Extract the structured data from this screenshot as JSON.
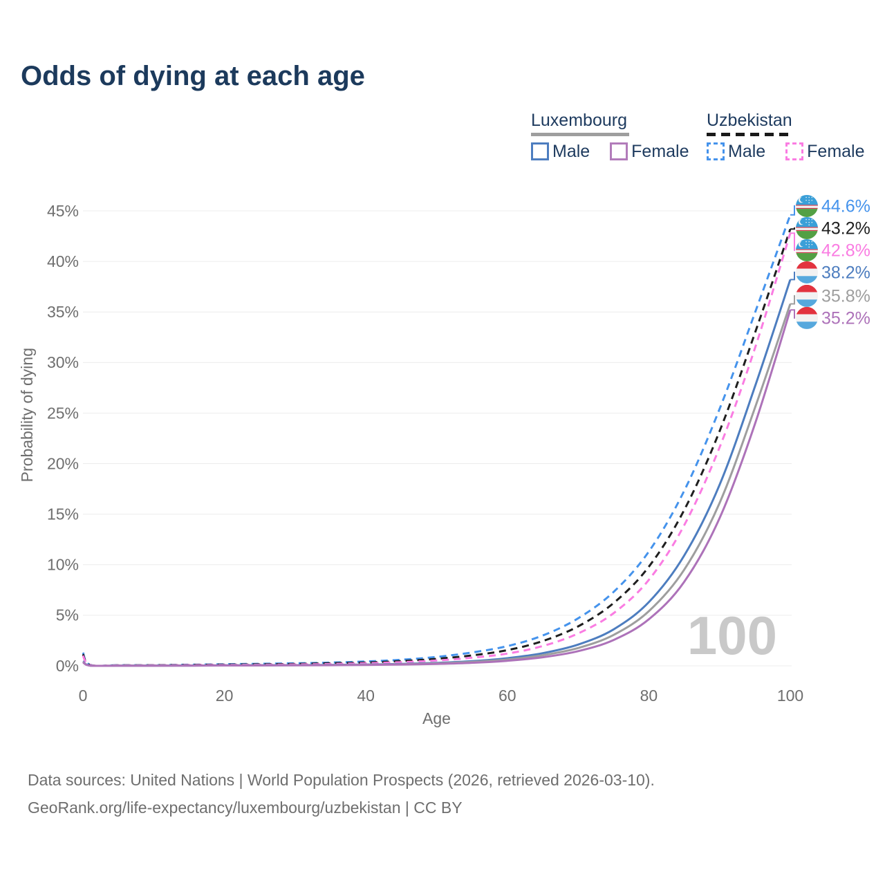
{
  "title": "Odds of dying at each age",
  "watermark": "100",
  "legend": {
    "groups": [
      {
        "id": "luxembourg",
        "label": "Luxembourg",
        "line_style": "solid",
        "line_color": "#9e9e9e",
        "items": [
          {
            "label": "Male",
            "color": "#4d7dbf",
            "dash": false
          },
          {
            "label": "Female",
            "color": "#b27cba",
            "dash": false
          }
        ]
      },
      {
        "id": "uzbekistan",
        "label": "Uzbekistan",
        "line_style": "dashed",
        "line_color": "#1a1a1a",
        "items": [
          {
            "label": "Male",
            "color": "#4593ec",
            "dash": true
          },
          {
            "label": "Female",
            "color": "#fa7ce2",
            "dash": true
          }
        ]
      }
    ]
  },
  "y_axis": {
    "label": "Probability of dying",
    "tick_values": [
      0,
      5,
      10,
      15,
      20,
      25,
      30,
      35,
      40,
      45
    ],
    "tick_labels": [
      "0%",
      "5%",
      "10%",
      "15%",
      "20%",
      "25%",
      "30%",
      "35%",
      "40%",
      "45%"
    ]
  },
  "x_axis": {
    "label": "Age",
    "tick_values": [
      0,
      20,
      40,
      60,
      80,
      100
    ]
  },
  "flags": {
    "uzbekistan": {
      "blue": "#3a9fd8",
      "white": "#f2f2f2",
      "green": "#53a044",
      "red": "#cc3648"
    },
    "luxembourg": {
      "red": "#e2333f",
      "white": "#f2f2f2",
      "blue": "#56a8dd"
    }
  },
  "footer": {
    "line1": "Data sources: United Nations | World Population Prospects (2026, retrieved 2026-03-10).",
    "line2": "GeoRank.org/life-expectancy/luxembourg/uzbekistan | CC BY"
  },
  "chart_data": {
    "type": "line",
    "title": "Odds of dying at each age",
    "xlabel": "Age",
    "ylabel": "Probability of dying",
    "unit": "%",
    "xlim": [
      0,
      100
    ],
    "ylim": [
      0,
      45
    ],
    "grid": "horizontal",
    "series": [
      {
        "id": "uzbekistan-male",
        "country": "Uzbekistan",
        "sex": "Male",
        "color": "#4593ec",
        "dashed": true,
        "flag": "uzbekistan",
        "end_label": "44.6%",
        "end_value": 44.6,
        "points": [
          [
            0,
            1.3
          ],
          [
            1,
            0.1
          ],
          [
            5,
            0.06
          ],
          [
            10,
            0.07
          ],
          [
            15,
            0.11
          ],
          [
            20,
            0.16
          ],
          [
            25,
            0.2
          ],
          [
            30,
            0.25
          ],
          [
            35,
            0.32
          ],
          [
            40,
            0.43
          ],
          [
            45,
            0.6
          ],
          [
            50,
            0.88
          ],
          [
            55,
            1.32
          ],
          [
            60,
            1.95
          ],
          [
            65,
            3.0
          ],
          [
            70,
            4.7
          ],
          [
            75,
            7.3
          ],
          [
            80,
            11.3
          ],
          [
            85,
            17.3
          ],
          [
            90,
            25.4
          ],
          [
            95,
            34.9
          ],
          [
            100,
            44.6
          ]
        ]
      },
      {
        "id": "uzbekistan-both",
        "country": "Uzbekistan",
        "sex": "Both sexes",
        "color": "#1f1f1f",
        "dashed": true,
        "flag": "uzbekistan",
        "end_label": "43.2%",
        "end_value": 43.2,
        "points": [
          [
            0,
            1.15
          ],
          [
            1,
            0.09
          ],
          [
            5,
            0.05
          ],
          [
            10,
            0.06
          ],
          [
            15,
            0.09
          ],
          [
            20,
            0.12
          ],
          [
            25,
            0.15
          ],
          [
            30,
            0.19
          ],
          [
            35,
            0.25
          ],
          [
            40,
            0.33
          ],
          [
            45,
            0.47
          ],
          [
            50,
            0.69
          ],
          [
            55,
            1.03
          ],
          [
            60,
            1.55
          ],
          [
            65,
            2.45
          ],
          [
            70,
            3.9
          ],
          [
            75,
            6.2
          ],
          [
            80,
            9.8
          ],
          [
            85,
            15.4
          ],
          [
            90,
            23.2
          ],
          [
            95,
            32.9
          ],
          [
            100,
            43.2
          ]
        ]
      },
      {
        "id": "uzbekistan-female",
        "country": "Uzbekistan",
        "sex": "Female",
        "color": "#fa7ce2",
        "dashed": true,
        "flag": "uzbekistan",
        "end_label": "42.8%",
        "end_value": 42.8,
        "points": [
          [
            0,
            1.0
          ],
          [
            1,
            0.08
          ],
          [
            5,
            0.04
          ],
          [
            10,
            0.05
          ],
          [
            15,
            0.07
          ],
          [
            20,
            0.09
          ],
          [
            25,
            0.11
          ],
          [
            30,
            0.14
          ],
          [
            35,
            0.18
          ],
          [
            40,
            0.25
          ],
          [
            45,
            0.36
          ],
          [
            50,
            0.53
          ],
          [
            55,
            0.8
          ],
          [
            60,
            1.21
          ],
          [
            65,
            1.96
          ],
          [
            70,
            3.2
          ],
          [
            75,
            5.2
          ],
          [
            80,
            8.5
          ],
          [
            85,
            13.9
          ],
          [
            90,
            21.6
          ],
          [
            95,
            31.4
          ],
          [
            100,
            42.8
          ]
        ]
      },
      {
        "id": "luxembourg-male",
        "country": "Luxembourg",
        "sex": "Male",
        "color": "#4d7dbf",
        "dashed": false,
        "flag": "luxembourg",
        "end_label": "38.2%",
        "end_value": 38.2,
        "points": [
          [
            0,
            0.45
          ],
          [
            1,
            0.03
          ],
          [
            5,
            0.015
          ],
          [
            10,
            0.015
          ],
          [
            15,
            0.03
          ],
          [
            20,
            0.05
          ],
          [
            25,
            0.06
          ],
          [
            30,
            0.07
          ],
          [
            35,
            0.09
          ],
          [
            40,
            0.13
          ],
          [
            45,
            0.19
          ],
          [
            50,
            0.29
          ],
          [
            55,
            0.46
          ],
          [
            60,
            0.75
          ],
          [
            65,
            1.25
          ],
          [
            70,
            2.1
          ],
          [
            75,
            3.6
          ],
          [
            80,
            6.3
          ],
          [
            85,
            10.9
          ],
          [
            90,
            17.9
          ],
          [
            95,
            27.6
          ],
          [
            100,
            38.2
          ]
        ]
      },
      {
        "id": "luxembourg-both",
        "country": "Luxembourg",
        "sex": "Both sexes",
        "color": "#9e9e9e",
        "dashed": false,
        "flag": "luxembourg",
        "end_label": "35.8%",
        "end_value": 35.8,
        "points": [
          [
            0,
            0.4
          ],
          [
            1,
            0.027
          ],
          [
            5,
            0.013
          ],
          [
            10,
            0.013
          ],
          [
            15,
            0.026
          ],
          [
            20,
            0.042
          ],
          [
            25,
            0.052
          ],
          [
            30,
            0.062
          ],
          [
            35,
            0.078
          ],
          [
            40,
            0.11
          ],
          [
            45,
            0.16
          ],
          [
            50,
            0.24
          ],
          [
            55,
            0.38
          ],
          [
            60,
            0.62
          ],
          [
            65,
            1.05
          ],
          [
            70,
            1.76
          ],
          [
            75,
            3.05
          ],
          [
            80,
            5.4
          ],
          [
            85,
            9.5
          ],
          [
            90,
            16.1
          ],
          [
            95,
            25.5
          ],
          [
            100,
            35.8
          ]
        ]
      },
      {
        "id": "luxembourg-female",
        "country": "Luxembourg",
        "sex": "Female",
        "color": "#ad72b9",
        "dashed": false,
        "flag": "luxembourg",
        "end_label": "35.2%",
        "end_value": 35.2,
        "points": [
          [
            0,
            0.35
          ],
          [
            1,
            0.022
          ],
          [
            5,
            0.01
          ],
          [
            10,
            0.01
          ],
          [
            15,
            0.02
          ],
          [
            20,
            0.032
          ],
          [
            25,
            0.04
          ],
          [
            30,
            0.05
          ],
          [
            35,
            0.063
          ],
          [
            40,
            0.09
          ],
          [
            45,
            0.13
          ],
          [
            50,
            0.19
          ],
          [
            55,
            0.3
          ],
          [
            60,
            0.5
          ],
          [
            65,
            0.85
          ],
          [
            70,
            1.45
          ],
          [
            75,
            2.55
          ],
          [
            80,
            4.6
          ],
          [
            85,
            8.3
          ],
          [
            90,
            14.6
          ],
          [
            95,
            23.9
          ],
          [
            100,
            35.2
          ]
        ]
      }
    ]
  }
}
